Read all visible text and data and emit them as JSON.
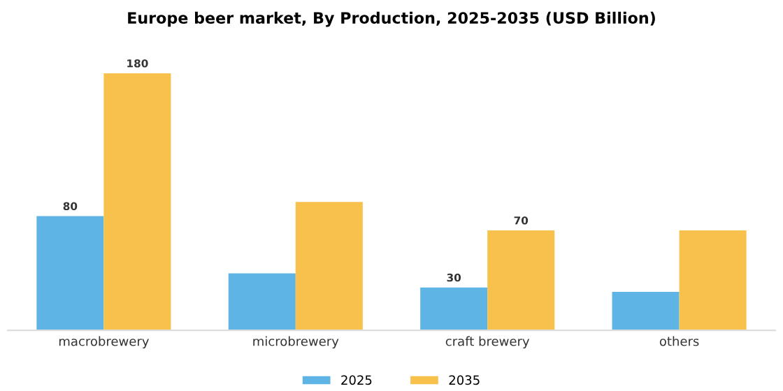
{
  "chart_data": {
    "type": "bar",
    "title": "Europe beer market, By Production, 2025-2035 (USD Billion)",
    "categories": [
      "macrobrewery",
      "microbrewery",
      "craft brewery",
      "others"
    ],
    "series": [
      {
        "name": "2025",
        "color": "#5db4e5",
        "values": [
          80,
          40,
          30,
          27
        ],
        "value_labels": [
          "80",
          null,
          "30",
          null
        ]
      },
      {
        "name": "2035",
        "color": "#f7c14c",
        "values": [
          180,
          90,
          70,
          70
        ],
        "value_labels": [
          "180",
          null,
          "70",
          null
        ]
      }
    ],
    "legend": "bottom",
    "grid": false
  }
}
